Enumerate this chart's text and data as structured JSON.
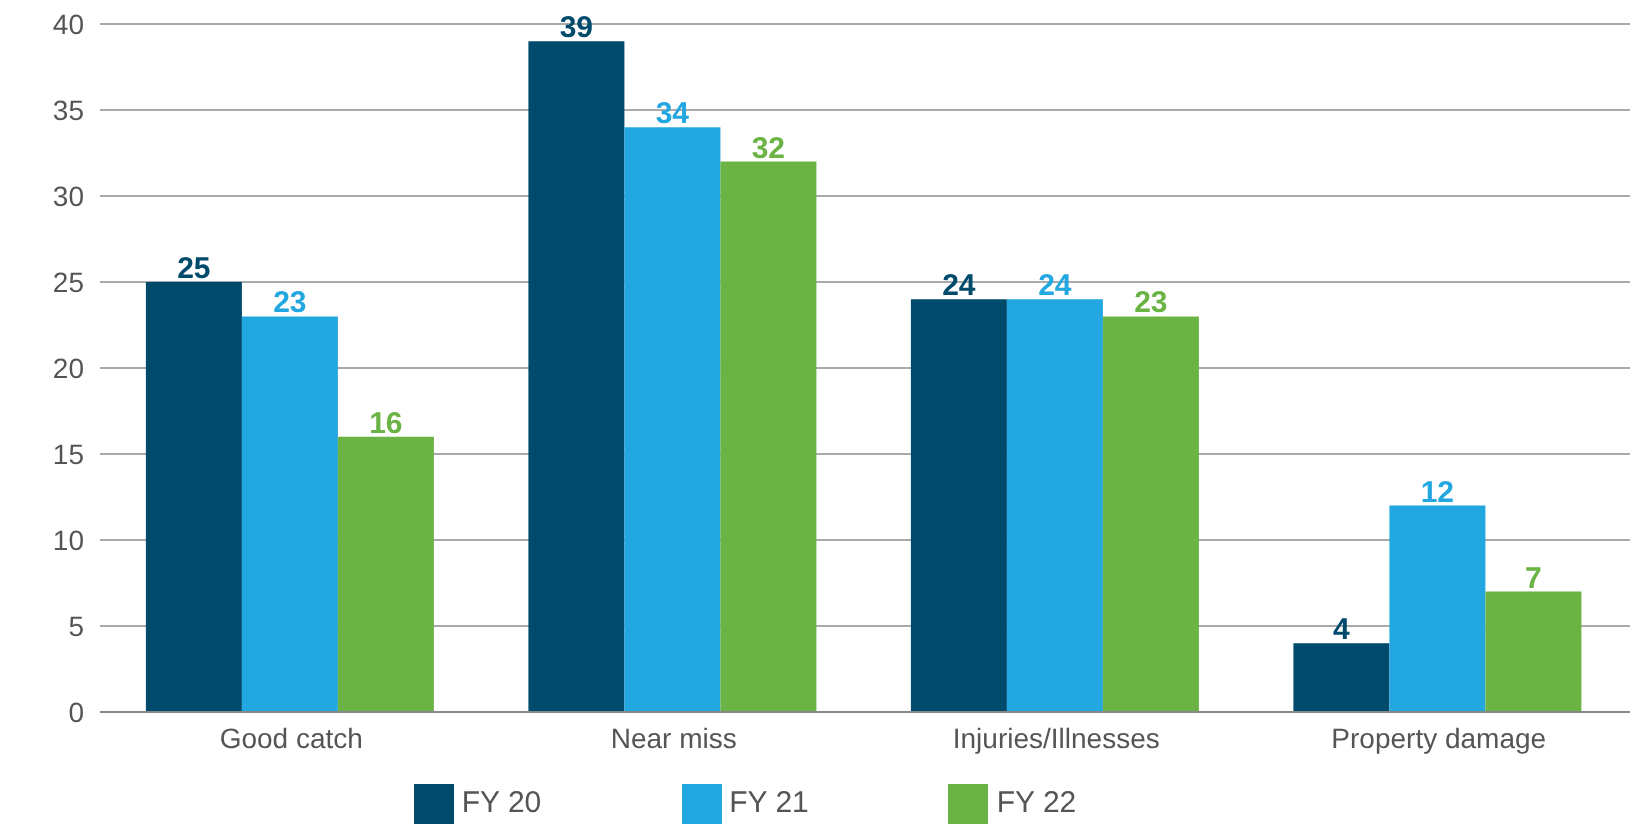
{
  "chart_data": {
    "type": "bar",
    "categories": [
      "Good catch",
      "Near miss",
      "Injuries/Illnesses",
      "Property damage"
    ],
    "series": [
      {
        "name": "FY 20",
        "color": "#004a6c",
        "values": [
          25,
          39,
          24,
          4
        ]
      },
      {
        "name": "FY 21",
        "color": "#22a7e0",
        "values": [
          23,
          34,
          24,
          12
        ]
      },
      {
        "name": "FY 22",
        "color": "#6ab344",
        "values": [
          16,
          32,
          23,
          7
        ]
      }
    ],
    "ylim": [
      0,
      40
    ],
    "yticks": [
      0,
      5,
      10,
      15,
      20,
      25,
      30,
      35,
      40
    ],
    "grid": "y",
    "legend": "bottom",
    "data_labels": true
  }
}
